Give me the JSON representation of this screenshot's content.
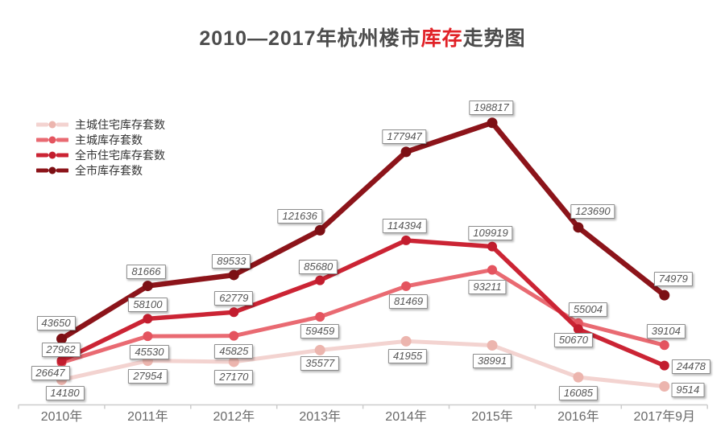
{
  "title": {
    "prefix": "2010—2017年杭州楼市",
    "highlight": "库存",
    "suffix": "走势图"
  },
  "colors": {
    "title_text": "#4c4c4c",
    "title_highlight": "#e12228",
    "axis_line": "#cccccc",
    "axis_text": "#696969",
    "label_text": "#555555",
    "label_border": "#8c8c8c"
  },
  "chart_data": {
    "type": "line",
    "title": "2010—2017年杭州楼市库存走势图",
    "categories": [
      "2010年",
      "2011年",
      "2012年",
      "2013年",
      "2014年",
      "2015年",
      "2016年",
      "2017年9月"
    ],
    "series": [
      {
        "name": "主城住宅库存套数",
        "color": "#f3d3d0",
        "marker_color": "#ecb5ae",
        "values": [
          14180,
          27954,
          27170,
          35577,
          41955,
          38991,
          16085,
          9514
        ]
      },
      {
        "name": "主城库存套数",
        "color": "#e96a72",
        "marker_color": "#e4545f",
        "values": [
          26647,
          45530,
          45825,
          59459,
          81469,
          93211,
          55004,
          39104
        ]
      },
      {
        "name": "全市住宅库存套数",
        "color": "#cb2434",
        "marker_color": "#c21d2e",
        "values": [
          27962,
          58100,
          62779,
          85680,
          114394,
          109919,
          50670,
          24478
        ]
      },
      {
        "name": "全市库存套数",
        "color": "#8c141a",
        "marker_color": "#7c0f14",
        "values": [
          43650,
          81666,
          89533,
          121636,
          177947,
          198817,
          123690,
          74979
        ]
      }
    ],
    "ylim": [
      0,
      210000
    ],
    "grid": false,
    "legend_position": "top-left",
    "data_labels": true,
    "x_axis_shown": true,
    "y_axis_shown": false
  }
}
